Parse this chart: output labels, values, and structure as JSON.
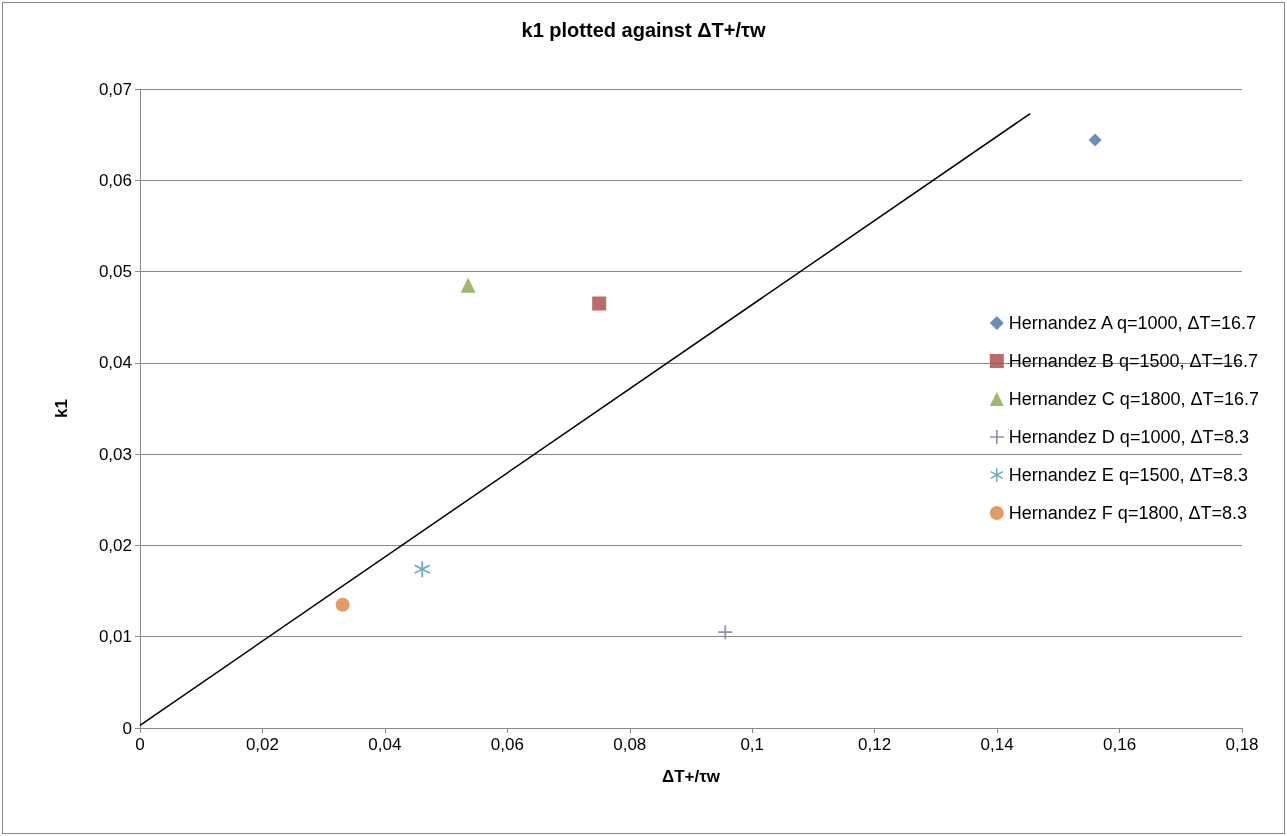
{
  "chart_data": {
    "type": "scatter",
    "title": "k1 plotted against ΔT+/τw",
    "xlabel": "ΔT+/τw",
    "ylabel": "k1",
    "xlim": [
      0,
      0.18
    ],
    "xticks": [
      0,
      {
        "value": 0.02,
        "label": "0,02"
      },
      {
        "value": 0.04,
        "label": "0,04"
      },
      {
        "value": 0.06,
        "label": "0,06"
      },
      {
        "value": 0.08,
        "label": "0,08"
      },
      {
        "value": 0.1,
        "label": "0,1"
      },
      {
        "value": 0.12,
        "label": "0,12"
      },
      {
        "value": 0.14,
        "label": "0,14"
      },
      {
        "value": 0.16,
        "label": "0,16"
      },
      {
        "value": 0.18,
        "label": "0,18"
      }
    ],
    "ylim": [
      0,
      0.07
    ],
    "yticks": [
      0,
      {
        "value": 0.01,
        "label": "0,01"
      },
      {
        "value": 0.02,
        "label": "0,02"
      },
      {
        "value": 0.03,
        "label": "0,03"
      },
      {
        "value": 0.04,
        "label": "0,04"
      },
      {
        "value": 0.05,
        "label": "0,05"
      },
      {
        "value": 0.06,
        "label": "0,06"
      },
      {
        "value": 0.07,
        "label": "0,07"
      }
    ],
    "grid": "y",
    "legend": "right",
    "series": [
      {
        "name": "Hernandez A q=1000, ΔT=16.7",
        "color": "#4572a7",
        "marker": "diamond",
        "x": [
          0.156
        ],
        "values": [
          0.0644
        ]
      },
      {
        "name": "Hernandez B q=1500, ΔT=16.7",
        "color": "#aa4643",
        "marker": "square",
        "x": [
          0.075
        ],
        "values": [
          0.0465
        ]
      },
      {
        "name": "Hernandez C q=1800, ΔT=16.7",
        "color": "#89a54e",
        "marker": "triangle",
        "x": [
          0.0536
        ],
        "values": [
          0.0485
        ]
      },
      {
        "name": "Hernandez D q=1000, ΔT=8.3",
        "color": "#80699b",
        "marker": "cross",
        "x": [
          0.0956
        ],
        "values": [
          0.0105
        ]
      },
      {
        "name": "Hernandez E q=1500, ΔT=8.3",
        "color": "#3d96ae",
        "marker": "star",
        "x": [
          0.0461
        ],
        "values": [
          0.0174
        ]
      },
      {
        "name": "Hernandez F q=1800, ΔT=8.3",
        "color": "#db843d",
        "marker": "circle",
        "x": [
          0.0331
        ],
        "values": [
          0.0135
        ]
      },
      {
        "type": "line",
        "color": "#000000",
        "marker": "none",
        "line_style": "solid",
        "x": [
          0,
          0.1454
        ],
        "values": [
          0.0003,
          0.0673
        ]
      }
    ]
  }
}
